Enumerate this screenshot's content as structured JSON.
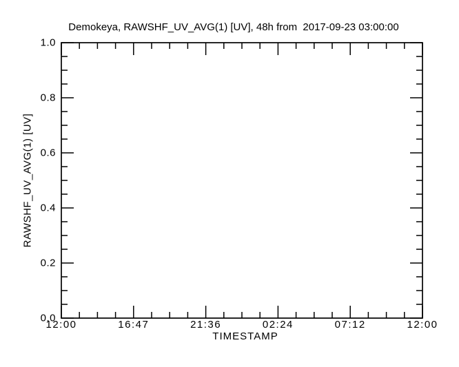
{
  "chart_data": {
    "type": "line",
    "title": "Demokeya, RAWSHF_UV_AVG(1) [UV], 48h from  2017-09-23 03:00:00",
    "xlabel": "TIMESTAMP",
    "ylabel": "RAWSHF_UV_AVG(1) [UV]",
    "x_tick_labels": [
      "12:00",
      "16:47",
      "21:36",
      "02:24",
      "07:12",
      "12:00"
    ],
    "y_tick_labels": [
      "0.0",
      "0.2",
      "0.4",
      "0.6",
      "0.8",
      "1.0"
    ],
    "y_ticks": [
      0.0,
      0.2,
      0.4,
      0.6,
      0.8,
      1.0
    ],
    "ylim": [
      0.0,
      1.0
    ],
    "x_minor_per_interval": 3,
    "y_minor_per_interval": 3,
    "grid": false,
    "legend": false,
    "series": [],
    "axis_color": "#000000",
    "background_color": "#ffffff"
  }
}
